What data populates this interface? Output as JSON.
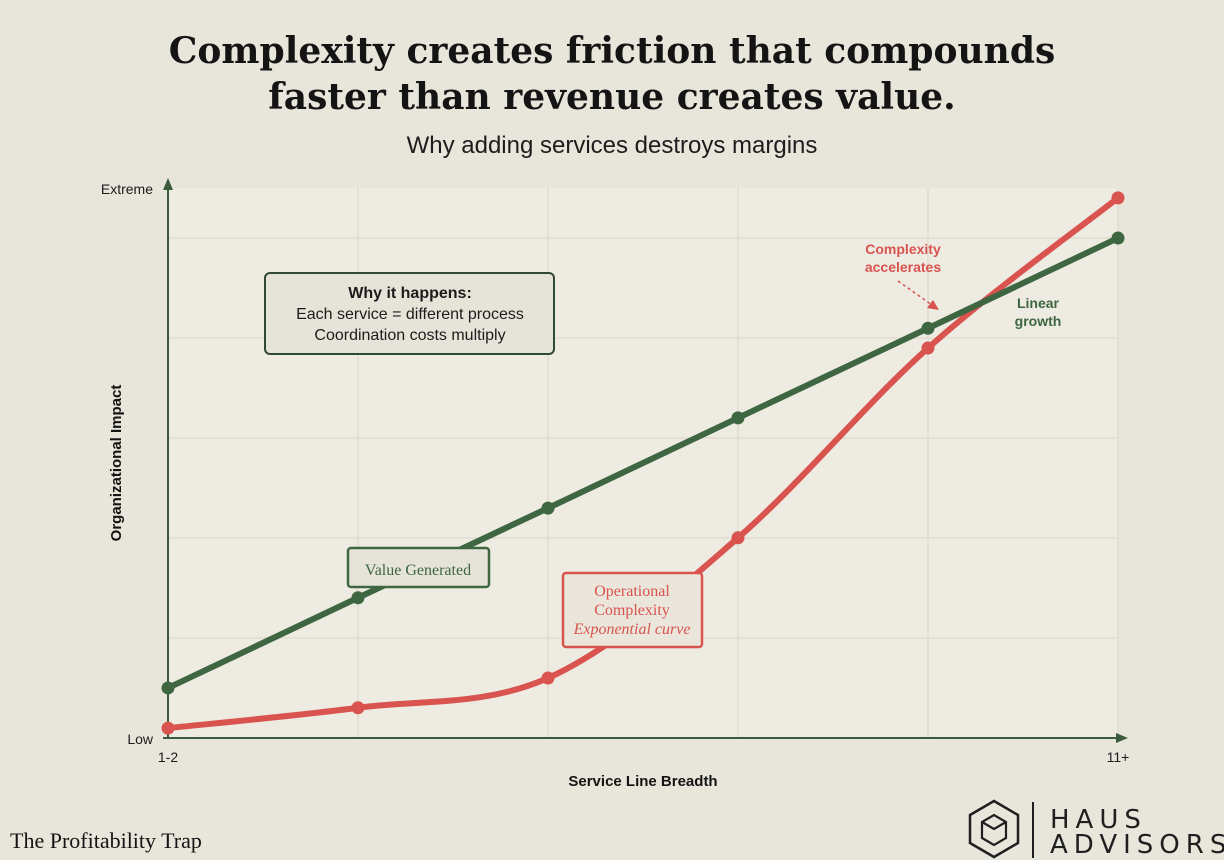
{
  "title_lines": [
    "Complexity creates friction that compounds",
    "faster than revenue creates value."
  ],
  "subtitle": "Why adding services destroys margins",
  "footer": {
    "left_text": "The Profitability Trap"
  },
  "brand": {
    "line1": "HAUS",
    "line2": "ADVISORS",
    "icon": "hexagon-house-icon"
  },
  "colors": {
    "background": "#e8e5da",
    "plot_bg": "#eeebe2",
    "green": "#3d6641",
    "red": "#d9534f",
    "axis": "#3b5a3c"
  },
  "chart_data": {
    "type": "line",
    "x": [
      1,
      2,
      3,
      4,
      5,
      6
    ],
    "xtick_labels": [
      "1-2",
      "",
      "",
      "",
      "",
      "11+"
    ],
    "ytick_labels": [
      "Low",
      "Extreme"
    ],
    "xlabel": "Service Line Breadth",
    "ylabel": "Organizational Impact",
    "xlim": [
      1,
      6
    ],
    "ylim": [
      0,
      100
    ],
    "grid": true,
    "series": [
      {
        "name": "Value Generated",
        "color": "#3d6641",
        "smooth": false,
        "values": [
          9.1,
          25.5,
          41.8,
          58.2,
          74.5,
          90.9
        ]
      },
      {
        "name": "Operational Complexity",
        "subname": "Exponential curve",
        "color": "#d9534f",
        "smooth": true,
        "values": [
          1.8,
          5.5,
          10.9,
          36.4,
          70.9,
          98.2
        ]
      }
    ],
    "annotations": {
      "why_title": "Why it happens:",
      "why_lines": [
        "Each service = different process",
        "Coordination costs multiply"
      ],
      "accelerates": [
        "Complexity",
        "accelerates"
      ],
      "linear": [
        "Linear",
        "growth"
      ]
    }
  }
}
